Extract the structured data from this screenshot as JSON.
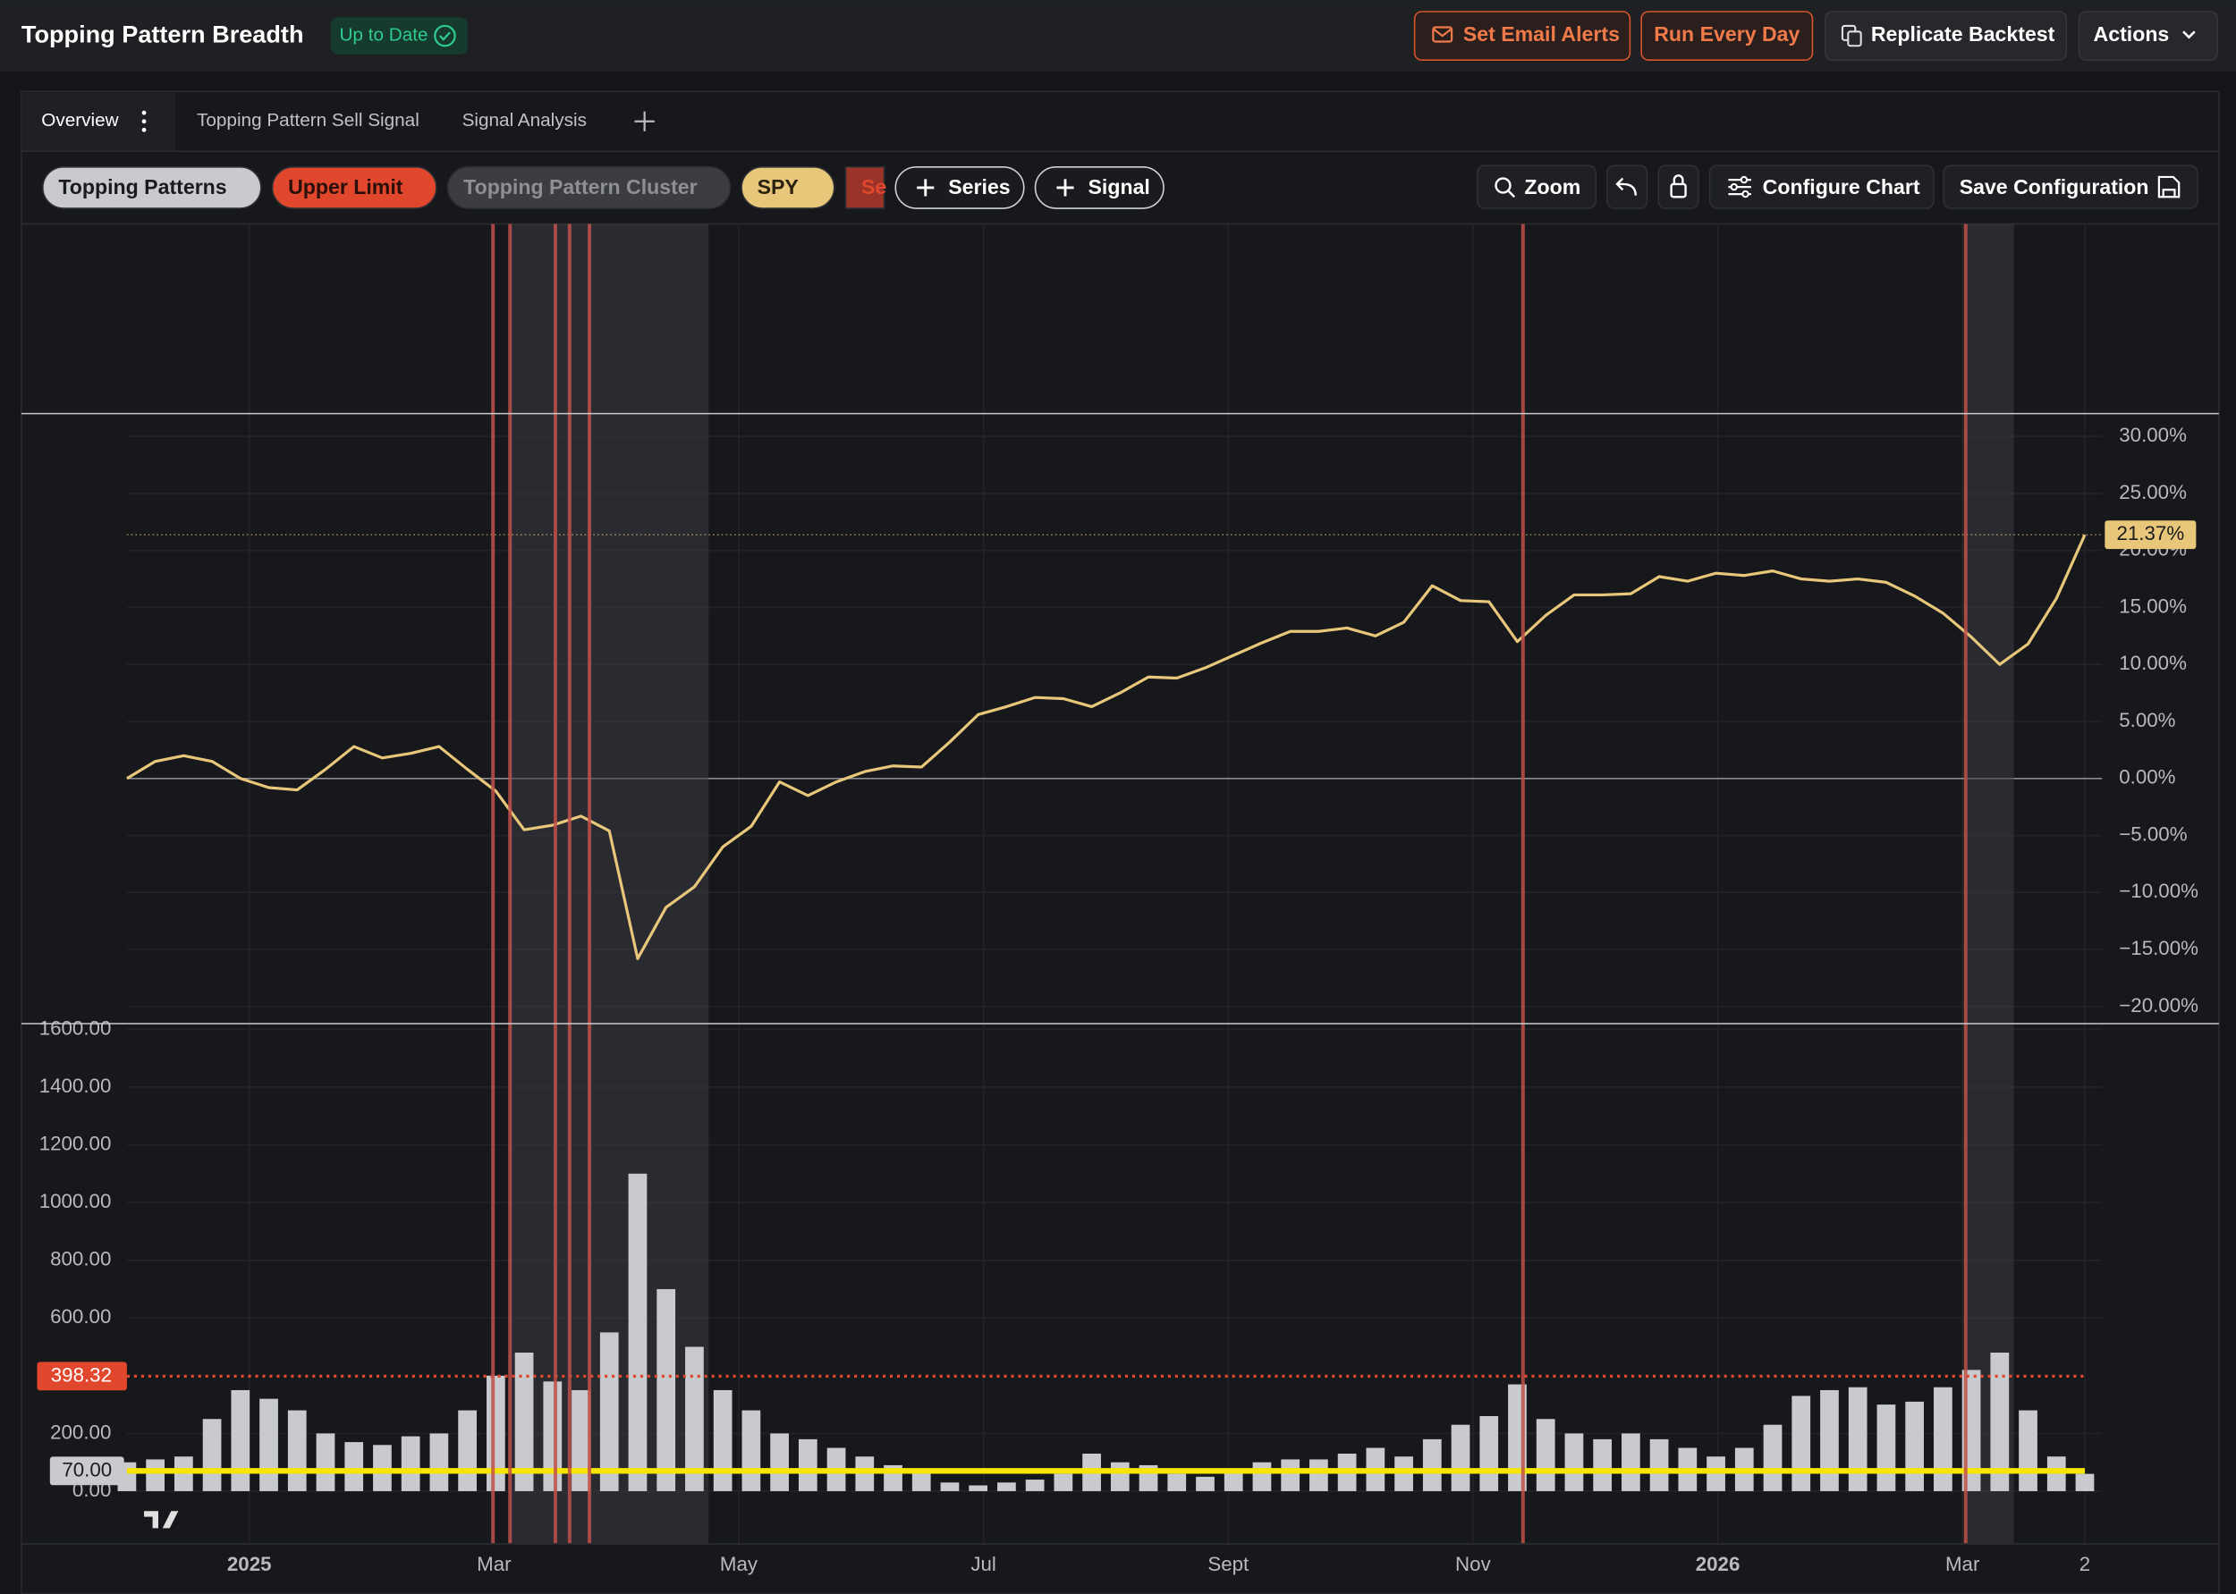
{
  "header": {
    "title": "Topping Pattern Breadth",
    "status": "Up to Date",
    "buttons": [
      "Set Email Alerts",
      "Run Every Day",
      "Replicate Backtest",
      "Actions"
    ]
  },
  "tabs": [
    "Overview",
    "Topping Pattern Sell Signal",
    "Signal Analysis"
  ],
  "toolbar": {
    "add_series": "Series",
    "add_signal": "Signal",
    "zoom": "Zoom",
    "configure": "Configure Chart",
    "save": "Save Configuration"
  },
  "chart_data": {
    "type": "line",
    "series": [
      {
        "name": "Topping Patterns",
        "color": "#c8cacd",
        "type": "bar",
        "axis": "y2",
        "values": [
          100,
          110,
          120,
          250,
          350,
          320,
          280,
          200,
          170,
          160,
          190,
          200,
          280,
          400,
          480,
          380,
          350,
          550,
          1100,
          700,
          500,
          350,
          280,
          200,
          180,
          150,
          120,
          90,
          70,
          30,
          20,
          30,
          40,
          60,
          130,
          100,
          90,
          60,
          50,
          70,
          100,
          110,
          110,
          130,
          150,
          120,
          180,
          230,
          260,
          370,
          250,
          200,
          180,
          200,
          180,
          150,
          120,
          150,
          230,
          330,
          350,
          360,
          300,
          310,
          360,
          420,
          480,
          280,
          120,
          60
        ]
      },
      {
        "name": "Upper Limit",
        "color": "#e0472c",
        "axis": "y2",
        "level": {
          "value": 398.32,
          "label": "398.32"
        }
      },
      {
        "name": "Topping Pattern Cluster",
        "color": "#3b3d41",
        "ranges": [
          [
            13.5,
            20.5
          ],
          [
            64.8,
            66.5
          ]
        ]
      },
      {
        "name": "SPY",
        "color": "#e8c77a",
        "last_label": "21.37%",
        "values": [
          0,
          1.5,
          2,
          1.5,
          0,
          -0.8,
          -1,
          0.8,
          2.8,
          1.8,
          2.2,
          2.8,
          0.8,
          -1.1,
          -4.5,
          -4.1,
          -3.3,
          -4.6,
          -15.8,
          -11.3,
          -9.5,
          -6,
          -4.2,
          -0.3,
          -1.5,
          -0.3,
          0.6,
          1.1,
          1,
          3.2,
          5.6,
          6.3,
          7.1,
          7,
          6.3,
          7.5,
          8.9,
          8.8,
          9.7,
          10.8,
          11.9,
          12.9,
          12.9,
          13.2,
          12.5,
          13.7,
          16.9,
          15.6,
          15.5,
          12,
          14.3,
          16.1,
          16.1,
          16.2,
          17.7,
          17.3,
          18,
          17.8,
          18.2,
          17.5,
          17.3,
          17.5,
          17.2,
          16,
          14.5,
          12.4,
          10,
          11.8,
          15.8,
          21.37
        ]
      },
      {
        "name": "Se",
        "color": "#9a3328",
        "positions": [
          12.9,
          13.5,
          15.1,
          15.6,
          16.3,
          49.2,
          64.8
        ]
      }
    ],
    "threshold": {
      "value": 70,
      "label": "70.00"
    },
    "threshold_color": "#f5e500",
    "xlim": [
      "2024-12",
      "2026-04"
    ],
    "xticks": [
      {
        "value": "2025-01",
        "label": "2025"
      },
      {
        "value": "2025-03",
        "label": "Mar"
      },
      {
        "value": "2025-05",
        "label": "May"
      },
      {
        "value": "2025-07",
        "label": "Jul"
      },
      {
        "value": "2025-09",
        "label": "Sept"
      },
      {
        "value": "2025-11",
        "label": "Nov"
      },
      {
        "value": "2026-01",
        "label": "2026"
      },
      {
        "value": "2026-03",
        "label": "Mar"
      },
      {
        "value": "2026-04",
        "label": "2"
      }
    ],
    "ylim": [
      -20,
      30
    ],
    "yticks": [
      {
        "value": 30,
        "label": "30.00%"
      },
      {
        "value": 25,
        "label": "25.00%"
      },
      {
        "value": 20,
        "label": "20.00%"
      },
      {
        "value": 15,
        "label": "15.00%"
      },
      {
        "value": 10,
        "label": "10.00%"
      },
      {
        "value": 5,
        "label": "5.00%"
      },
      {
        "value": 0,
        "label": "0.00%"
      },
      {
        "value": -5,
        "label": "−5.00%"
      },
      {
        "value": -10,
        "label": "−10.00%"
      },
      {
        "value": -15,
        "label": "−15.00%"
      },
      {
        "value": -20,
        "label": "−20.00%"
      }
    ],
    "y2lim": [
      0,
      1600
    ],
    "y2ticks": [
      {
        "value": 0,
        "label": "0.00"
      },
      {
        "value": 200,
        "label": "200.00"
      },
      {
        "value": 600,
        "label": "600.00"
      },
      {
        "value": 800,
        "label": "800.00"
      },
      {
        "value": 1000,
        "label": "1000.00"
      },
      {
        "value": 1200,
        "label": "1200.00"
      },
      {
        "value": 1400,
        "label": "1400.00"
      },
      {
        "value": 1600,
        "label": "1600.00"
      }
    ],
    "grid": true
  }
}
